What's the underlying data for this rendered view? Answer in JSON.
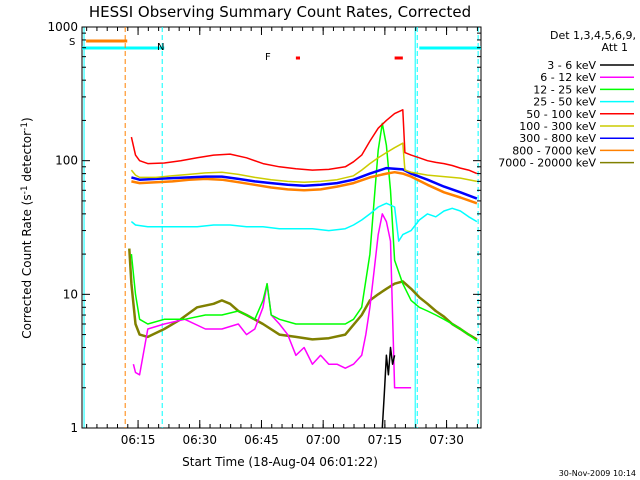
{
  "chart_data": {
    "type": "line",
    "title": "HESSI Observing Summary Count Rates, Corrected",
    "xlabel": "Start Time (18-Aug-04 06:01:22)",
    "ylabel_main": "Corrected Count Rate (s",
    "ylabel_sup1": "-1",
    "ylabel_mid": " detector",
    "ylabel_sup2": "-1",
    "ylabel_end": ")",
    "yscale": "log",
    "ylim": [
      1,
      1000
    ],
    "xlim_minutes": [
      0,
      97
    ],
    "x_ticks": [
      {
        "label": "06:15",
        "minute": 13.63
      },
      {
        "label": "06:30",
        "minute": 28.63
      },
      {
        "label": "06:45",
        "minute": 43.63
      },
      {
        "label": "07:00",
        "minute": 58.63
      },
      {
        "label": "07:15",
        "minute": 73.63
      },
      {
        "label": "07:30",
        "minute": 88.63
      }
    ],
    "y_ticks": [
      {
        "label": "1",
        "value": 1
      },
      {
        "label": "10",
        "value": 10
      },
      {
        "label": "100",
        "value": 100
      },
      {
        "label": "1000",
        "value": 1000
      }
    ],
    "legend_title_1": "Det 1,3,4,5,6,9,",
    "legend_title_2": "Att 1",
    "legend_placement": "right",
    "series": [
      {
        "name": "3 - 6 keV",
        "color": "#000000",
        "points": [
          [
            73.0,
            1.0
          ],
          [
            73.5,
            1.8
          ],
          [
            74.0,
            3.5
          ],
          [
            74.5,
            2.5
          ],
          [
            75.0,
            4.0
          ],
          [
            75.5,
            3.0
          ],
          [
            76.0,
            3.5
          ]
        ]
      },
      {
        "name": "6 - 12 keV",
        "color": "#ff00ff",
        "points": [
          [
            12.5,
            3.0
          ],
          [
            13,
            2.6
          ],
          [
            14,
            2.5
          ],
          [
            16,
            5.5
          ],
          [
            20,
            6.0
          ],
          [
            25,
            6.5
          ],
          [
            30,
            5.5
          ],
          [
            34,
            5.5
          ],
          [
            38,
            6.0
          ],
          [
            40,
            5.0
          ],
          [
            42,
            5.5
          ],
          [
            44,
            8.0
          ],
          [
            45,
            12.0
          ],
          [
            46,
            7.0
          ],
          [
            48,
            6.0
          ],
          [
            50,
            5.0
          ],
          [
            52,
            3.5
          ],
          [
            54,
            4.0
          ],
          [
            56,
            3.0
          ],
          [
            58,
            3.5
          ],
          [
            60,
            3.0
          ],
          [
            62,
            3.0
          ],
          [
            64,
            2.8
          ],
          [
            66,
            3.0
          ],
          [
            68,
            3.5
          ],
          [
            69,
            5.0
          ],
          [
            70,
            8.0
          ],
          [
            71,
            15.0
          ],
          [
            72,
            28.0
          ],
          [
            73,
            40.0
          ],
          [
            74,
            35.0
          ],
          [
            75,
            25.0
          ],
          [
            76,
            2.0
          ],
          [
            78,
            2.0
          ],
          [
            80,
            2.0
          ]
        ]
      },
      {
        "name": "12 - 25 keV",
        "color": "#00ff00",
        "points": [
          [
            12,
            20.0
          ],
          [
            13,
            10.0
          ],
          [
            14,
            6.5
          ],
          [
            16,
            6.0
          ],
          [
            20,
            6.5
          ],
          [
            25,
            6.5
          ],
          [
            30,
            7.0
          ],
          [
            34,
            7.0
          ],
          [
            38,
            7.5
          ],
          [
            40,
            7.0
          ],
          [
            42,
            6.5
          ],
          [
            44,
            9.0
          ],
          [
            45,
            12.0
          ],
          [
            46,
            7.0
          ],
          [
            48,
            6.5
          ],
          [
            52,
            6.0
          ],
          [
            56,
            6.0
          ],
          [
            60,
            6.0
          ],
          [
            64,
            6.0
          ],
          [
            66,
            6.5
          ],
          [
            68,
            8.0
          ],
          [
            70,
            20.0
          ],
          [
            71,
            50.0
          ],
          [
            72,
            120.0
          ],
          [
            73,
            190.0
          ],
          [
            74,
            130.0
          ],
          [
            75,
            60.0
          ],
          [
            76,
            18.0
          ],
          [
            78,
            12.0
          ],
          [
            80,
            9.0
          ],
          [
            82,
            8.0
          ],
          [
            84,
            7.5
          ],
          [
            86,
            7.0
          ],
          [
            88,
            6.5
          ],
          [
            90,
            6.0
          ],
          [
            92,
            5.5
          ],
          [
            94,
            5.0
          ],
          [
            96,
            4.5
          ]
        ]
      },
      {
        "name": "25 - 50 keV",
        "color": "#00ffff",
        "points": [
          [
            12,
            35
          ],
          [
            13,
            33
          ],
          [
            16,
            32
          ],
          [
            20,
            32
          ],
          [
            24,
            32
          ],
          [
            28,
            32
          ],
          [
            32,
            33
          ],
          [
            36,
            33
          ],
          [
            40,
            32
          ],
          [
            44,
            32
          ],
          [
            48,
            31
          ],
          [
            52,
            31
          ],
          [
            56,
            31
          ],
          [
            60,
            30
          ],
          [
            64,
            31
          ],
          [
            66,
            33
          ],
          [
            68,
            36
          ],
          [
            70,
            40
          ],
          [
            72,
            45
          ],
          [
            74,
            48
          ],
          [
            76,
            45
          ],
          [
            77,
            25
          ],
          [
            78,
            28
          ],
          [
            80,
            30
          ],
          [
            82,
            36
          ],
          [
            84,
            40
          ],
          [
            86,
            38
          ],
          [
            88,
            42
          ],
          [
            90,
            44
          ],
          [
            92,
            42
          ],
          [
            94,
            38
          ],
          [
            96,
            35
          ]
        ]
      },
      {
        "name": "50 - 100 keV",
        "color": "#ff0000",
        "points": [
          [
            12,
            150
          ],
          [
            13,
            110
          ],
          [
            14,
            100
          ],
          [
            16,
            95
          ],
          [
            20,
            96
          ],
          [
            24,
            100
          ],
          [
            28,
            105
          ],
          [
            32,
            110
          ],
          [
            36,
            112
          ],
          [
            40,
            105
          ],
          [
            44,
            95
          ],
          [
            48,
            90
          ],
          [
            52,
            87
          ],
          [
            56,
            85
          ],
          [
            60,
            86
          ],
          [
            64,
            90
          ],
          [
            66,
            98
          ],
          [
            68,
            110
          ],
          [
            70,
            140
          ],
          [
            72,
            175
          ],
          [
            74,
            200
          ],
          [
            76,
            225
          ],
          [
            78,
            240
          ],
          [
            78.5,
            115
          ],
          [
            80,
            110
          ],
          [
            82,
            105
          ],
          [
            84,
            100
          ],
          [
            86,
            97
          ],
          [
            88,
            95
          ],
          [
            90,
            92
          ],
          [
            92,
            88
          ],
          [
            94,
            85
          ],
          [
            96,
            80
          ]
        ]
      },
      {
        "name": "100 - 300 keV",
        "color": "#cccc00",
        "points": [
          [
            12,
            85
          ],
          [
            13,
            78
          ],
          [
            14,
            75
          ],
          [
            18,
            75
          ],
          [
            22,
            77
          ],
          [
            26,
            79
          ],
          [
            30,
            81
          ],
          [
            34,
            82
          ],
          [
            38,
            79
          ],
          [
            42,
            75
          ],
          [
            46,
            72
          ],
          [
            50,
            70
          ],
          [
            54,
            69
          ],
          [
            58,
            70
          ],
          [
            62,
            72
          ],
          [
            66,
            77
          ],
          [
            68,
            85
          ],
          [
            70,
            95
          ],
          [
            72,
            105
          ],
          [
            74,
            115
          ],
          [
            76,
            125
          ],
          [
            78,
            135
          ],
          [
            78.5,
            85
          ],
          [
            80,
            82
          ],
          [
            84,
            78
          ],
          [
            88,
            76
          ],
          [
            92,
            74
          ],
          [
            96,
            70
          ]
        ]
      },
      {
        "name": "300 - 800 keV",
        "color": "#0000ff",
        "points": [
          [
            12,
            75
          ],
          [
            14,
            72
          ],
          [
            18,
            73
          ],
          [
            22,
            74
          ],
          [
            26,
            75
          ],
          [
            30,
            76
          ],
          [
            34,
            76
          ],
          [
            38,
            73
          ],
          [
            42,
            70
          ],
          [
            46,
            68
          ],
          [
            50,
            66
          ],
          [
            54,
            65
          ],
          [
            58,
            66
          ],
          [
            62,
            68
          ],
          [
            66,
            72
          ],
          [
            70,
            80
          ],
          [
            74,
            88
          ],
          [
            76,
            87
          ],
          [
            78,
            86
          ],
          [
            80,
            80
          ],
          [
            84,
            72
          ],
          [
            88,
            64
          ],
          [
            92,
            58
          ],
          [
            96,
            52
          ]
        ]
      },
      {
        "name": "800 - 7000 keV",
        "color": "#ff8000",
        "points": [
          [
            12,
            70
          ],
          [
            14,
            68
          ],
          [
            18,
            69
          ],
          [
            22,
            70
          ],
          [
            26,
            72
          ],
          [
            30,
            73
          ],
          [
            34,
            72
          ],
          [
            38,
            69
          ],
          [
            42,
            66
          ],
          [
            46,
            63
          ],
          [
            50,
            61
          ],
          [
            54,
            60
          ],
          [
            58,
            61
          ],
          [
            62,
            64
          ],
          [
            66,
            68
          ],
          [
            70,
            75
          ],
          [
            74,
            80
          ],
          [
            76,
            82
          ],
          [
            78,
            80
          ],
          [
            80,
            76
          ],
          [
            84,
            66
          ],
          [
            88,
            58
          ],
          [
            92,
            53
          ],
          [
            96,
            48
          ]
        ]
      },
      {
        "name": "7000 - 20000 keV",
        "color": "#808000",
        "points": [
          [
            11.5,
            22
          ],
          [
            12,
            12
          ],
          [
            13,
            6
          ],
          [
            14,
            5
          ],
          [
            16,
            4.8
          ],
          [
            20,
            5.5
          ],
          [
            24,
            6.5
          ],
          [
            28,
            8.0
          ],
          [
            32,
            8.5
          ],
          [
            34,
            9.0
          ],
          [
            36,
            8.5
          ],
          [
            38,
            7.5
          ],
          [
            40,
            7.0
          ],
          [
            44,
            6.0
          ],
          [
            48,
            5.0
          ],
          [
            52,
            4.8
          ],
          [
            56,
            4.6
          ],
          [
            60,
            4.7
          ],
          [
            64,
            5.0
          ],
          [
            68,
            7.0
          ],
          [
            70,
            9.0
          ],
          [
            72,
            10.0
          ],
          [
            74,
            11.0
          ],
          [
            76,
            12.0
          ],
          [
            78,
            12.5
          ],
          [
            80,
            11.0
          ],
          [
            82,
            9.5
          ],
          [
            84,
            8.5
          ],
          [
            86,
            7.5
          ],
          [
            88,
            6.8
          ],
          [
            90,
            6.0
          ],
          [
            92,
            5.5
          ],
          [
            94,
            5.0
          ],
          [
            96,
            4.6
          ]
        ]
      }
    ],
    "annotations": [
      {
        "label": "S",
        "color": "#ff8000"
      },
      {
        "label": "N",
        "color": "#00ffff"
      },
      {
        "label": "F",
        "color": "#ff0000"
      }
    ],
    "markers": {
      "s_bar_minutes": [
        1,
        11
      ],
      "n_bar_minutes": [
        [
          0,
          20
        ],
        [
          82,
          97
        ]
      ],
      "f_bar_minutes": [
        [
          52,
          53
        ],
        [
          76,
          78
        ]
      ],
      "v_lines": [
        {
          "minute": 0.5,
          "color": "#00ffff",
          "dashed": false
        },
        {
          "minute": 10.5,
          "color": "#ff8000",
          "dashed": true
        },
        {
          "minute": 19.5,
          "color": "#00ffff",
          "dashed": true
        },
        {
          "minute": 81.0,
          "color": "#00ffff",
          "dashed": false
        },
        {
          "minute": 81.5,
          "color": "#00ffff",
          "dashed": true
        },
        {
          "minute": 96.3,
          "color": "#00ffff",
          "dashed": true
        }
      ]
    }
  },
  "timestamp": "30-Nov-2009 10:14"
}
